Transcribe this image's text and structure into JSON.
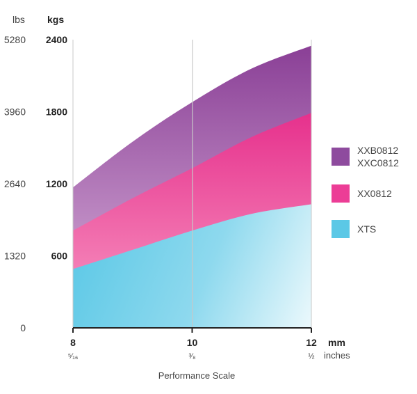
{
  "chart_data": {
    "type": "area",
    "stacked": true,
    "xlabel": "Performance Scale",
    "x_unit_primary": "mm",
    "x_unit_secondary": "inches",
    "x": [
      8,
      10,
      12
    ],
    "x_ticks": [
      {
        "value": 8,
        "label": "8",
        "sublabel": "⁵⁄₁₆"
      },
      {
        "value": 10,
        "label": "10",
        "sublabel": "³⁄₈"
      },
      {
        "value": 12,
        "label": "12",
        "sublabel": "½"
      }
    ],
    "xlim": [
      8,
      12
    ],
    "y_unit_primary": "kgs",
    "y_unit_secondary": "lbs",
    "ylim": [
      0,
      2400
    ],
    "y_ticks": [
      {
        "kgs": 0,
        "kgs_label": "",
        "lbs_label": "0"
      },
      {
        "kgs": 600,
        "kgs_label": "600",
        "lbs_label": "1320"
      },
      {
        "kgs": 1200,
        "kgs_label": "1200",
        "lbs_label": "2640"
      },
      {
        "kgs": 1800,
        "kgs_label": "1800",
        "lbs_label": "3960"
      },
      {
        "kgs": 2400,
        "kgs_label": "2400",
        "lbs_label": "5280"
      }
    ],
    "grid": {
      "vertical": [
        10
      ],
      "horizontal": false
    },
    "legend_position": "right",
    "series": [
      {
        "name": "XTS",
        "color": "#5bc8e6",
        "points": [
          [
            8,
            490
          ],
          [
            9,
            650
          ],
          [
            10,
            810
          ],
          [
            11,
            950
          ],
          [
            12,
            1030
          ]
        ]
      },
      {
        "name": "XX0812",
        "color": "#ec3d96",
        "points": [
          [
            8,
            810
          ],
          [
            9,
            1080
          ],
          [
            10,
            1330
          ],
          [
            11,
            1590
          ],
          [
            12,
            1790
          ]
        ]
      },
      {
        "name": "XXB0812 XXC0812",
        "legend_lines": [
          "XXB0812",
          "XXC0812"
        ],
        "color": "#8e4b9e",
        "points": [
          [
            8,
            1170
          ],
          [
            9,
            1550
          ],
          [
            10,
            1880
          ],
          [
            11,
            2160
          ],
          [
            12,
            2350
          ]
        ]
      }
    ]
  }
}
